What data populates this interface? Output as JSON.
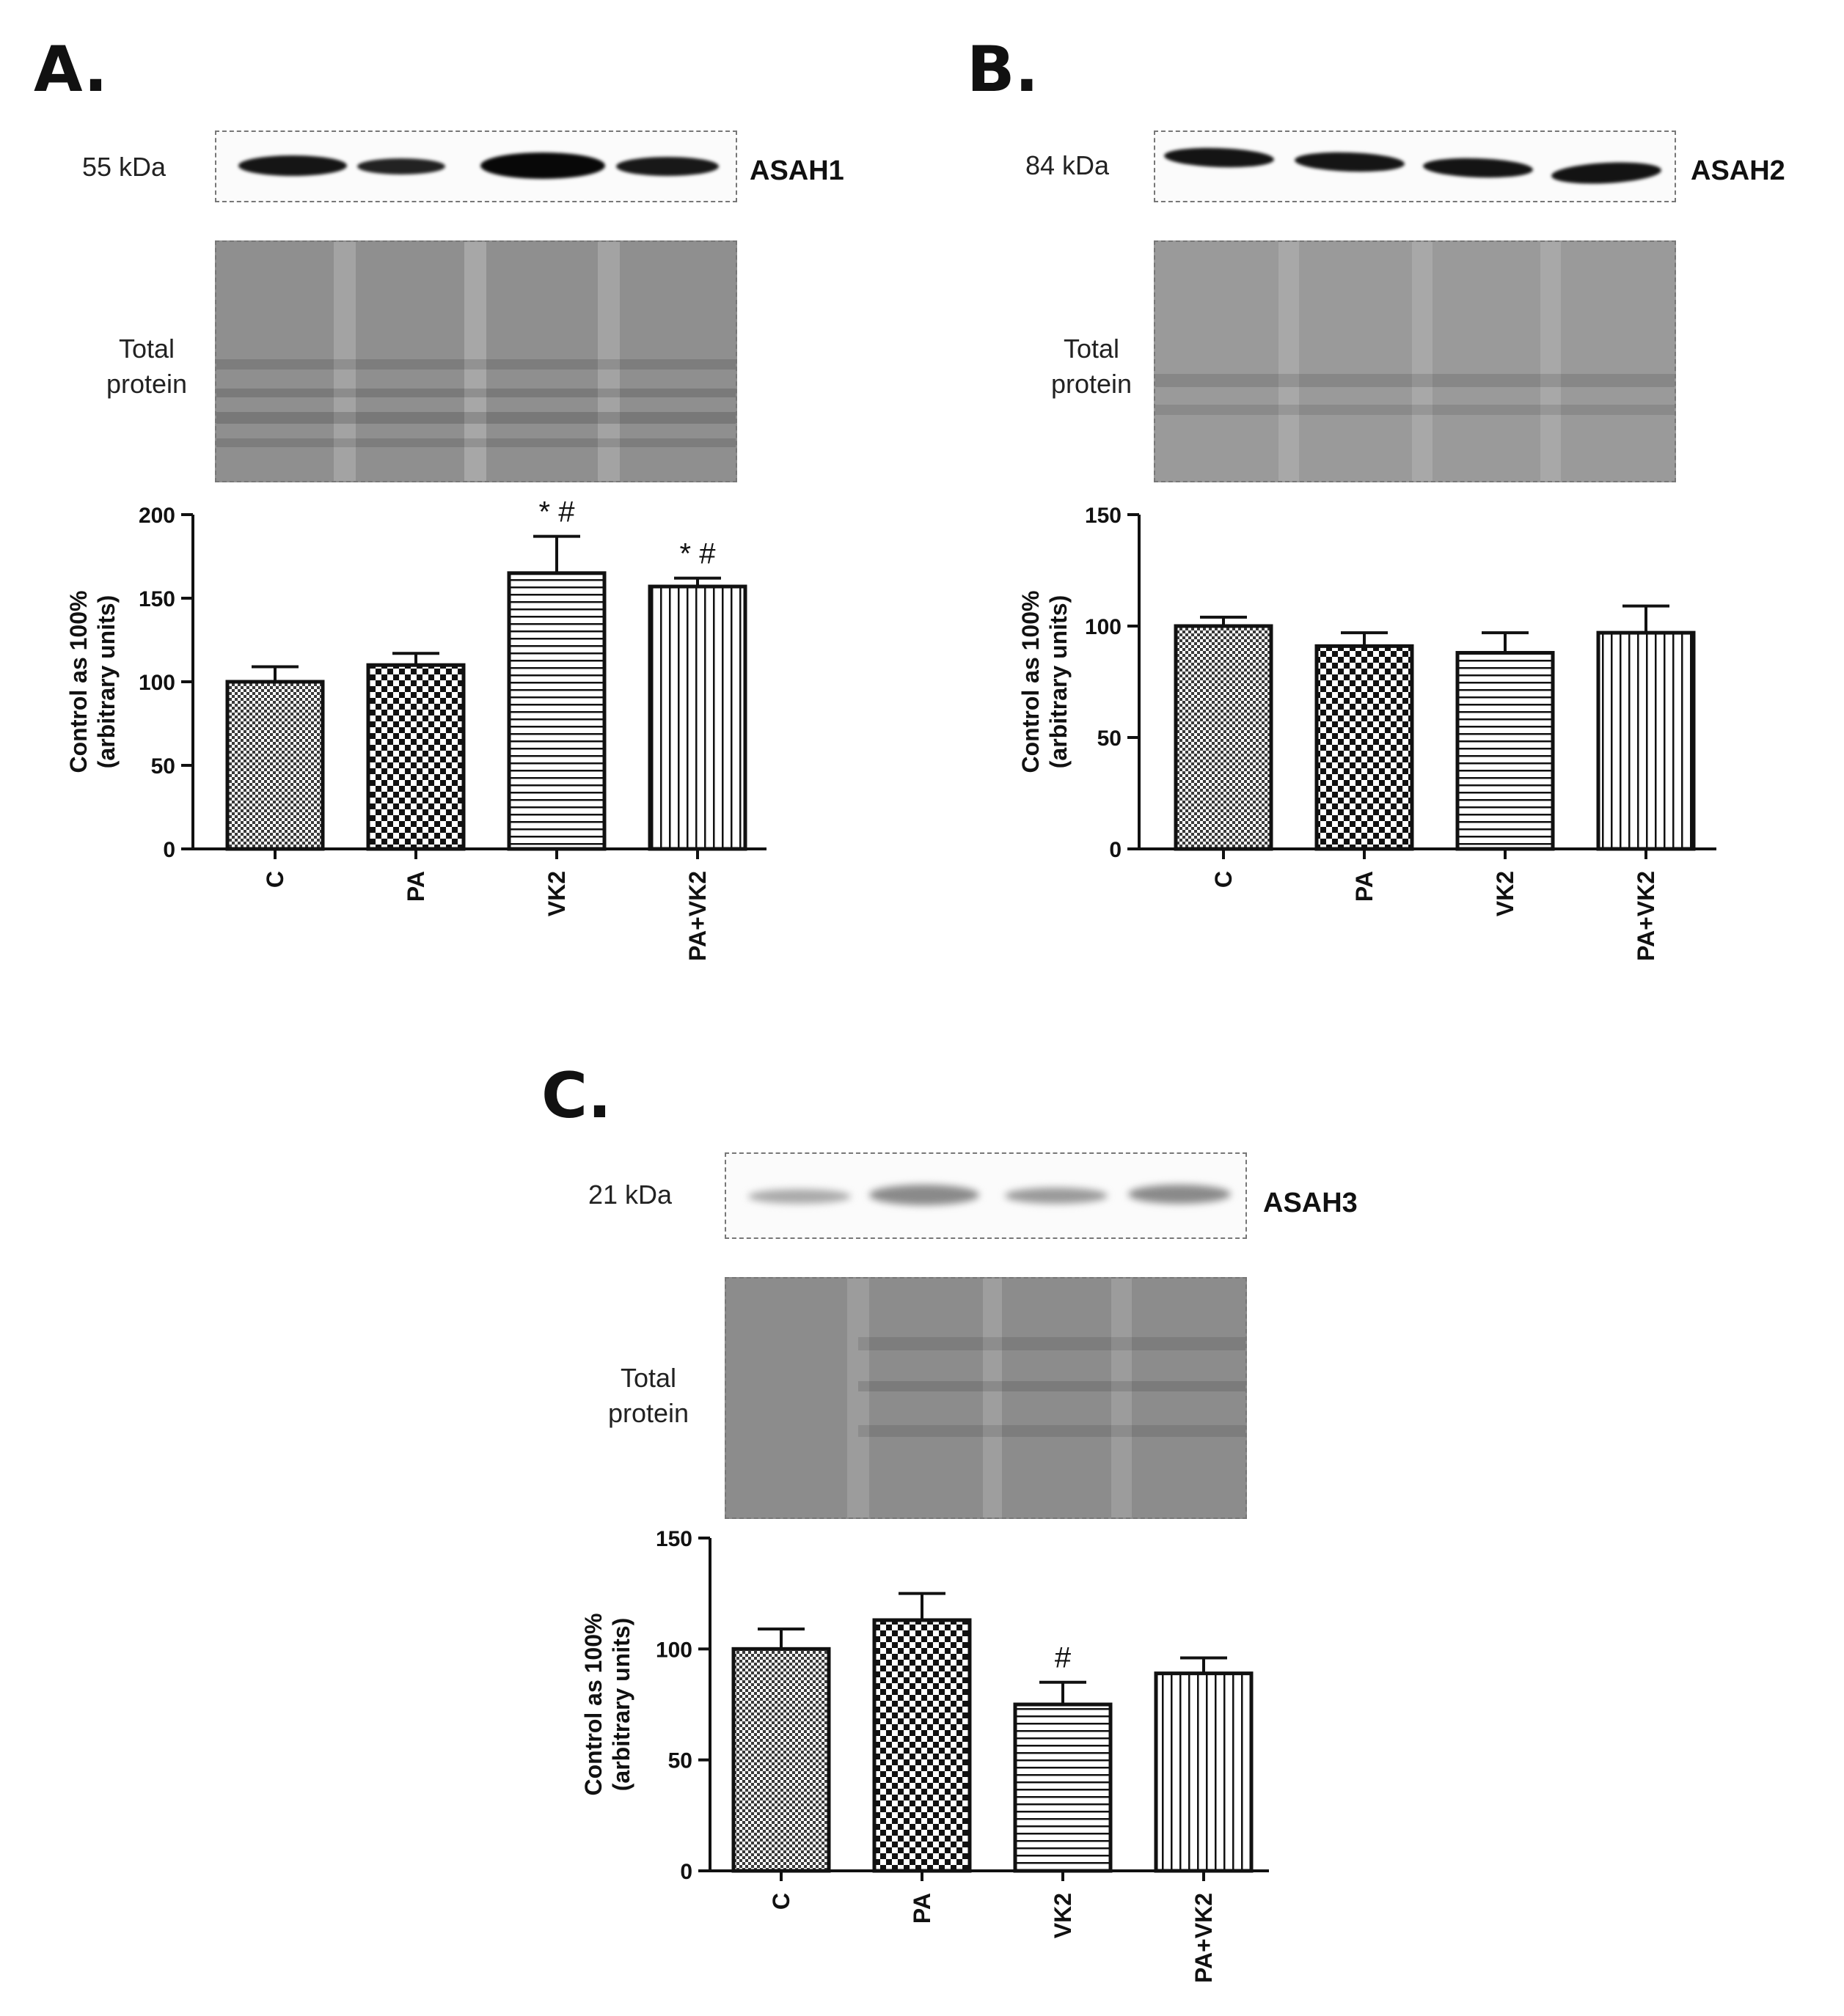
{
  "panels": [
    {
      "letter": "A.",
      "kda": "55 kDa",
      "protein": "ASAH1",
      "total_label_1": "Total",
      "total_label_2": "protein"
    },
    {
      "letter": "B.",
      "kda": "84 kDa",
      "protein": "ASAH2",
      "total_label_1": "Total",
      "total_label_2": "protein"
    },
    {
      "letter": "C.",
      "kda": "21 kDa",
      "protein": "ASAH3",
      "total_label_1": "Total",
      "total_label_2": "protein"
    }
  ],
  "chart_data": [
    {
      "type": "bar",
      "panel": "A.",
      "categories": [
        "C",
        "PA",
        "VK2",
        "PA+VK2"
      ],
      "values": [
        100,
        110,
        165,
        157
      ],
      "errors": [
        9,
        7,
        22,
        5
      ],
      "annotations": [
        "",
        "",
        "* #",
        "* #"
      ],
      "patterns": [
        "fine-check",
        "check",
        "horizontal",
        "vertical"
      ],
      "ylabel": "Control as 100%",
      "ylabel2": "(arbitrary units)",
      "ylim": [
        0,
        200
      ],
      "yticks": [
        0,
        50,
        100,
        150,
        200
      ],
      "grid": false,
      "legend": "none"
    },
    {
      "type": "bar",
      "panel": "B.",
      "categories": [
        "C",
        "PA",
        "VK2",
        "PA+VK2"
      ],
      "values": [
        100,
        91,
        88,
        97
      ],
      "errors": [
        4,
        6,
        9,
        12
      ],
      "annotations": [
        "",
        "",
        "",
        ""
      ],
      "patterns": [
        "fine-check",
        "check",
        "horizontal",
        "vertical"
      ],
      "ylabel": "Control as 100%",
      "ylabel2": "(arbitrary units)",
      "ylim": [
        0,
        150
      ],
      "yticks": [
        0,
        50,
        100,
        150
      ],
      "grid": false,
      "legend": "none"
    },
    {
      "type": "bar",
      "panel": "C.",
      "categories": [
        "C",
        "PA",
        "VK2",
        "PA+VK2"
      ],
      "values": [
        100,
        113,
        75,
        89
      ],
      "errors": [
        9,
        12,
        10,
        7
      ],
      "annotations": [
        "",
        "",
        "#",
        ""
      ],
      "patterns": [
        "fine-check",
        "check",
        "horizontal",
        "vertical"
      ],
      "ylabel": "Control as 100%",
      "ylabel2": "(arbitrary units)",
      "ylim": [
        0,
        150
      ],
      "yticks": [
        0,
        50,
        100,
        150
      ],
      "grid": false,
      "legend": "none"
    }
  ]
}
